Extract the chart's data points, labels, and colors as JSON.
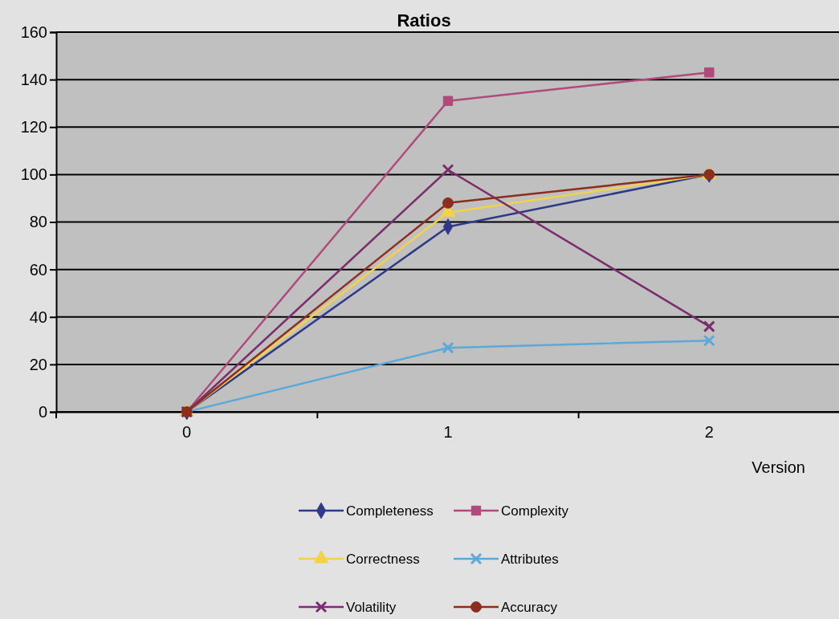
{
  "chart_data": {
    "type": "line",
    "title": "Ratios",
    "xlabel": "Version",
    "categories": [
      "0",
      "1",
      "2"
    ],
    "ylim": [
      0,
      160
    ],
    "yticks": [
      0,
      20,
      40,
      60,
      80,
      100,
      120,
      140,
      160
    ],
    "grid": "y",
    "legend": "bottom",
    "series": [
      {
        "name": "Completeness",
        "color": "#2e3a87",
        "marker": "diamond",
        "values": [
          0,
          78,
          100
        ]
      },
      {
        "name": "Complexity",
        "color": "#b04a7a",
        "marker": "square",
        "values": [
          0,
          131,
          143
        ]
      },
      {
        "name": "Correctness",
        "color": "#f2d24a",
        "marker": "triangle",
        "values": [
          0,
          84,
          100
        ]
      },
      {
        "name": "Attributes",
        "color": "#5aa9d9",
        "marker": "cross",
        "values": [
          0,
          27,
          30
        ]
      },
      {
        "name": "Volatility",
        "color": "#7a2e6e",
        "marker": "cross",
        "values": [
          0,
          102,
          36
        ]
      },
      {
        "name": "Accuracy",
        "color": "#8b2e1e",
        "marker": "circle",
        "values": [
          0,
          88,
          100
        ]
      }
    ]
  }
}
